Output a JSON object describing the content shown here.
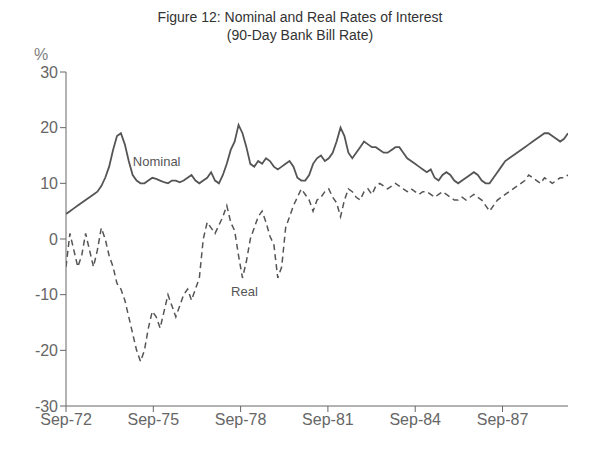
{
  "chart_data": {
    "type": "line",
    "title": "Figure 12: Nominal and Real Rates of Interest",
    "subtitle": "(90-Day Bank Bill Rate)",
    "y_label": "%",
    "xlim": [
      0,
      69
    ],
    "xticks": [
      {
        "value": 0,
        "label": "Sep-72"
      },
      {
        "value": 12,
        "label": "Sep-75"
      },
      {
        "value": 24,
        "label": "Sep-78"
      },
      {
        "value": 36,
        "label": "Sep-81"
      },
      {
        "value": 48,
        "label": "Sep-84"
      },
      {
        "value": 60,
        "label": "Sep-87"
      }
    ],
    "ylim": [
      -30,
      30
    ],
    "yticks": [
      -30,
      -20,
      -10,
      0,
      10,
      20,
      30
    ],
    "grid": false,
    "x": [
      0,
      0.5390625,
      1.078125,
      1.6171875,
      2.15625,
      2.6953125,
      3.234375,
      3.7734375,
      4.3125,
      4.8515625,
      5.390625,
      5.9296875,
      6.46875,
      7.0078125,
      7.546875,
      8.0859375,
      8.625,
      9.1640625,
      9.703125,
      10.2421875,
      10.78125,
      11.3203125,
      11.859375,
      12.3984375,
      12.9375,
      13.4765625,
      14.015625,
      14.5546875,
      15.09375,
      15.6328125,
      16.171875,
      16.7109375,
      17.25,
      17.7890625,
      18.328125,
      18.8671875,
      19.40625,
      19.9453125,
      20.484375,
      21.0234375,
      21.5625,
      22.1015625,
      22.640625,
      23.1796875,
      23.71875,
      24.2578125,
      24.796875,
      25.3359375,
      25.875,
      26.4140625,
      26.953125,
      27.4921875,
      28.03125,
      28.5703125,
      29.109375,
      29.6484375,
      30.1875,
      30.7265625,
      31.265625,
      31.8046875,
      32.34375,
      32.8828125,
      33.421875,
      33.9609375,
      34.5,
      35.0390625,
      35.578125,
      36.1171875,
      36.65625,
      37.1953125,
      37.734375,
      38.2734375,
      38.8125,
      39.3515625,
      39.890625,
      40.4296875,
      40.96875,
      41.5078125,
      42.046875,
      42.5859375,
      43.125,
      43.6640625,
      44.203125,
      44.7421875,
      45.28125,
      45.8203125,
      46.359375,
      46.8984375,
      47.4375,
      47.9765625,
      48.515625,
      49.0546875,
      49.59375,
      50.1328125,
      50.671875,
      51.2109375,
      51.75,
      52.2890625,
      52.828125,
      53.3671875,
      53.90625,
      54.4453125,
      54.984375,
      55.5234375,
      56.0625,
      56.6015625,
      57.140625,
      57.6796875,
      58.21875,
      58.7578125,
      59.296875,
      59.8359375,
      60.375,
      60.9140625,
      61.453125,
      61.9921875,
      62.53125,
      63.0703125,
      63.609375,
      64.1484375,
      64.6875,
      65.2265625,
      65.765625,
      66.3046875,
      66.84375,
      67.3828125,
      67.921875,
      68.4609375,
      69
    ],
    "series": [
      {
        "name": "Nominal",
        "color": "#555555",
        "line_style": "solid",
        "values": [
          4.5,
          5.0,
          5.5,
          6.0,
          6.5,
          7.0,
          7.5,
          8.0,
          8.5,
          9.5,
          11.0,
          13.0,
          16.0,
          18.5,
          19.0,
          17.0,
          14.0,
          11.5,
          10.5,
          10.0,
          10.0,
          10.5,
          11.0,
          10.8,
          10.5,
          10.2,
          10.0,
          10.5,
          10.5,
          10.2,
          10.5,
          11.0,
          11.5,
          10.5,
          10.0,
          10.5,
          11.0,
          12.0,
          10.5,
          10.0,
          11.5,
          13.5,
          16.0,
          17.5,
          20.5,
          19.0,
          16.5,
          13.5,
          13.0,
          14.0,
          13.5,
          14.5,
          14.0,
          13.0,
          12.5,
          13.0,
          13.5,
          14.0,
          13.0,
          11.0,
          10.5,
          10.5,
          11.5,
          13.5,
          14.5,
          15.0,
          14.0,
          14.5,
          15.5,
          17.5,
          20.0,
          18.5,
          15.5,
          14.5,
          15.5,
          16.5,
          17.5,
          17.0,
          16.5,
          16.5,
          16.0,
          15.5,
          15.5,
          16.0,
          16.5,
          16.5,
          15.5,
          14.5,
          14.0,
          13.5,
          13.0,
          12.5,
          12.0,
          12.5,
          11.0,
          10.5,
          11.5,
          12.0,
          11.5,
          10.5,
          10.0,
          10.5,
          11.0,
          11.5,
          12.0,
          11.5,
          10.5,
          10.0,
          10.0,
          11.0,
          12.0,
          13.0,
          14.0,
          14.5,
          15.0,
          15.5,
          16.0,
          16.5,
          17.0,
          17.5,
          18.0,
          18.5,
          19.0,
          19.0,
          18.5,
          18.0,
          17.5,
          18.0,
          19.0
        ]
      },
      {
        "name": "Real",
        "color": "#555555",
        "line_style": "dashed",
        "values": [
          -5.0,
          1.0,
          -2.0,
          -5.0,
          -3.0,
          1.0,
          -2.0,
          -5.0,
          -2.0,
          2.0,
          0.0,
          -3.0,
          -5.0,
          -8.0,
          -9.0,
          -11.0,
          -14.0,
          -17.0,
          -20.0,
          -22.0,
          -20.0,
          -16.0,
          -13.0,
          -14.0,
          -16.0,
          -13.0,
          -10.0,
          -12.0,
          -14.0,
          -12.0,
          -10.0,
          -9.0,
          -11.0,
          -9.0,
          -7.0,
          0.0,
          3.0,
          2.0,
          1.0,
          2.5,
          4.0,
          6.0,
          3.0,
          1.5,
          -3.0,
          -7.0,
          -4.0,
          0.0,
          2.0,
          4.0,
          5.0,
          3.0,
          0.5,
          -1.0,
          -7.0,
          -5.0,
          2.0,
          4.0,
          6.0,
          7.5,
          9.0,
          8.0,
          7.0,
          5.0,
          7.0,
          7.5,
          8.5,
          9.0,
          7.5,
          6.5,
          4.0,
          7.0,
          9.0,
          8.5,
          7.5,
          7.0,
          8.5,
          9.0,
          8.0,
          9.5,
          10.0,
          9.5,
          9.0,
          9.5,
          10.0,
          9.5,
          9.0,
          8.5,
          9.0,
          8.5,
          8.0,
          8.5,
          8.5,
          8.0,
          7.5,
          8.0,
          8.5,
          8.0,
          7.5,
          7.0,
          7.0,
          7.5,
          7.0,
          7.5,
          8.0,
          7.5,
          7.0,
          6.0,
          5.0,
          6.0,
          7.0,
          7.5,
          8.0,
          8.5,
          9.0,
          9.5,
          10.0,
          10.5,
          11.5,
          11.0,
          10.5,
          10.0,
          11.0,
          10.5,
          10.0,
          10.5,
          11.0,
          11.0,
          11.5
        ]
      }
    ],
    "annotations": [
      {
        "text": "Nominal",
        "x": 8.5,
        "y": 14.0,
        "color": "#555555"
      },
      {
        "text": "Real",
        "x": 22.0,
        "y": -9.5,
        "color": "#555555"
      }
    ]
  }
}
